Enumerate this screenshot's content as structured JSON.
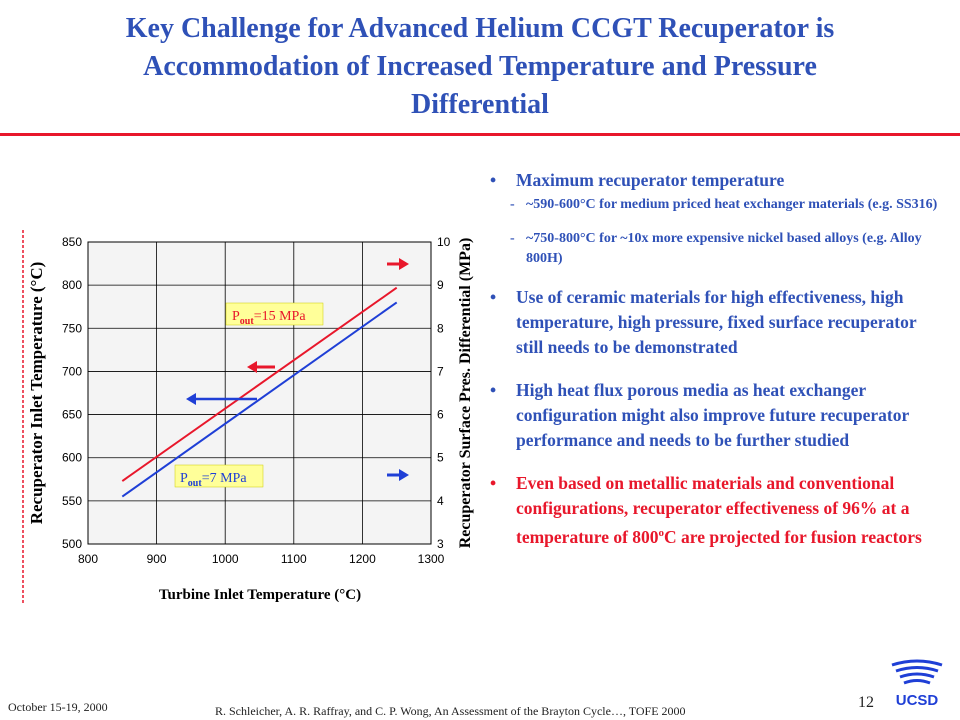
{
  "slide": {
    "title_lines": [
      "Key Challenge for Advanced Helium CCGT Recuperator is",
      "Accommodation of Increased Temperature and Pressure",
      "Differential"
    ]
  },
  "chart_data": {
    "type": "line",
    "xlabel": "Turbine Inlet Temperature (°C)",
    "ylabel": "Recuperator Inlet Temperature (°C)",
    "y2label": "Recuperator Surface Pres. Differential (MPa)",
    "xlim": [
      800,
      1300
    ],
    "ylim": [
      500,
      850
    ],
    "y2lim": [
      3,
      10
    ],
    "x_ticks": [
      "800",
      "900",
      "1000",
      "1100",
      "1200",
      "1300"
    ],
    "y_ticks": [
      "500",
      "550",
      "600",
      "650",
      "700",
      "750",
      "800",
      "850"
    ],
    "y2_ticks": [
      "3",
      "4",
      "5",
      "6",
      "7",
      "8",
      "9",
      "10"
    ],
    "grid": true,
    "series": [
      {
        "name": "Pout=15 MPa",
        "color": "#e8172b",
        "x": [
          850,
          1250
        ],
        "y": [
          573,
          797
        ]
      },
      {
        "name": "Pout=7 MPa",
        "color": "#1f3fd6",
        "x": [
          850,
          1250
        ],
        "y": [
          555,
          780
        ]
      }
    ],
    "annotations": [
      {
        "label_main": "P",
        "label_sub": "out",
        "label_rest": "=15 MPa"
      },
      {
        "label_main": "P",
        "label_sub": "out",
        "label_rest": "=7 MPa"
      }
    ]
  },
  "bullets": {
    "b1": {
      "text": "Maximum recuperator temperature",
      "sub1": "~590-600°C for medium priced heat exchanger materials (e.g. SS316)",
      "sub2": "~750-800°C for ~10x more expensive nickel based alloys (e.g. Alloy 800H)"
    },
    "b2": "Use of ceramic materials for high effectiveness, high temperature, high pressure, fixed surface recuperator still needs to be demonstrated",
    "b3": "High heat flux porous media as heat exchanger configuration might also improve future recuperator performance and needs to be further studied",
    "b4_before": "Even based on metallic materials and conventional configurations, recuperator effectiveness of 96% at a temperature of 800",
    "b4_sup": "o",
    "b4_after": "C are projected for fusion reactors",
    "bullet_char": "•",
    "dash_char": "-"
  },
  "footer": {
    "date": "October 15-19, 2000",
    "citation": "R. Schleicher,  A. R. Raffray, and C. P. Wong, An Assessment of the Brayton Cycle…, TOFE 2000",
    "page_number": "12",
    "logo_text": "UCSD"
  },
  "colors": {
    "accent_blue": "#2f51b7",
    "accent_red": "#e8172b",
    "label_bg": "#ffff99"
  }
}
